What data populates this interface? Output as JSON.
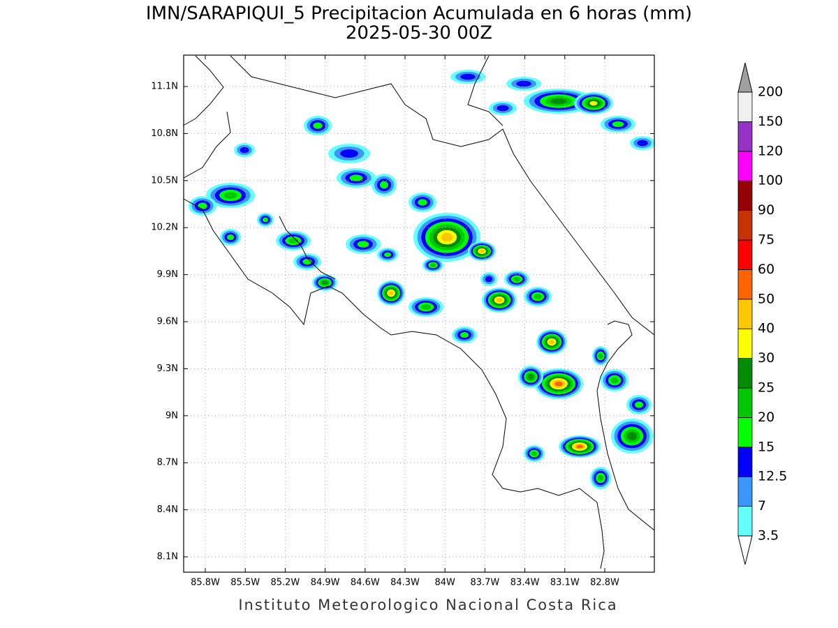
{
  "title": "IMN/SARAPIQUI_5 Precipitacion Acumulada en 6 horas (mm)",
  "subtitle": "2025-05-30 00Z",
  "map": {
    "lat_ticks": [
      "11.1N",
      "10.8N",
      "10.5N",
      "10.2N",
      "9.9N",
      "9.6N",
      "9.3N",
      "9N",
      "8.7N",
      "8.4N",
      "8.1N"
    ],
    "lon_ticks": [
      "85.8W",
      "85.5W",
      "85.2W",
      "84.9W",
      "84.6W",
      "84.3W",
      "84W",
      "83.7W",
      "83.4W",
      "83.1W",
      "82.8W"
    ]
  },
  "colorbar": {
    "levels": [
      "3.5",
      "7",
      "12.5",
      "15",
      "20",
      "25",
      "30",
      "40",
      "50",
      "60",
      "75",
      "90",
      "100",
      "120",
      "150",
      "200"
    ],
    "colors": [
      "#64ffff",
      "#3c96ff",
      "#0000ff",
      "#00ff00",
      "#00c800",
      "#008c00",
      "#ffff00",
      "#ffc800",
      "#ff6400",
      "#ff0000",
      "#c83200",
      "#960000",
      "#ff00ff",
      "#9632c8",
      "#f0f0f0"
    ],
    "over_color": "#a0a0a0",
    "under_color": "#ffffff"
  },
  "footer": "Instituto Meteorologico Nacional Costa Rica"
}
